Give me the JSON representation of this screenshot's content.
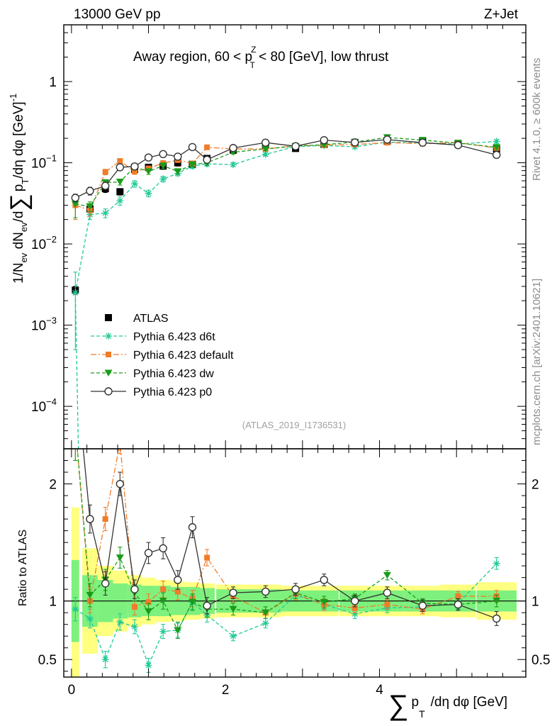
{
  "header": {
    "left": "13000 GeV pp",
    "right": "Z+Jet"
  },
  "plot_title": "Away region, 60 < p_T^Z < 80 [GeV], low thrust",
  "title_parts": {
    "pre": "Away region, 60 < p",
    "sup": "Z",
    "sub": "T",
    "post": " < 80 [GeV], low thrust"
  },
  "side_labels": {
    "rivet": "Rivet 4.1.0, ≥ 600k events",
    "mcplots": "mcplots.cern.ch [arXiv:2401.10621]"
  },
  "analysis_id": "(ATLAS_2019_I1736531)",
  "axis_labels": {
    "y_main": "1/N_ev dN_ev/d Σ p_T /dη dφ [GeV]^-1",
    "y_main_parts": {
      "a": "1/N",
      "a_sub": "ev",
      "b": " dN",
      "b_sub": "ev",
      "c": "/d",
      "sigma": "∑",
      "d": "p",
      "d_sub": "T",
      "e": "/dη dφ  [GeV]",
      "e_sup": "-1"
    },
    "y_ratio": "Ratio to ATLAS",
    "x": "Σ p_T /dη dφ [GeV]",
    "x_parts": {
      "sigma": "∑",
      "p": "p",
      "p_sub": "T",
      "rest": "/dη dφ [GeV]"
    }
  },
  "legend": [
    {
      "label": "ATLAS"
    },
    {
      "label": "Pythia 6.423 d6t"
    },
    {
      "label": "Pythia 6.423 default"
    },
    {
      "label": "Pythia 6.423 dw"
    },
    {
      "label": "Pythia 6.423 p0"
    }
  ],
  "colors": {
    "atlas": "#000000",
    "d6t": "#20c997",
    "default": "#f07c2a",
    "dw": "#1a9c1a",
    "p0": "#333333",
    "band_inner": "#7ef07e",
    "band_outer": "#ffff80"
  },
  "chart_data": {
    "type": "line",
    "x_range": [
      -0.1,
      5.9
    ],
    "main": {
      "y_scale": "log",
      "ylim": [
        3e-05,
        5
      ],
      "y_ticks": [
        {
          "value": 1,
          "label": "1"
        },
        {
          "value": 0.1,
          "label": "10",
          "sup": "−1"
        },
        {
          "value": 0.01,
          "label": "10",
          "sup": "−2"
        },
        {
          "value": 0.001,
          "label": "10",
          "sup": "−3"
        },
        {
          "value": 0.0001,
          "label": "10",
          "sup": "−4"
        }
      ]
    },
    "ratio": {
      "ylim": [
        0.35,
        2.3
      ],
      "y_ticks": [
        {
          "value": 2,
          "label": "2"
        },
        {
          "value": 1,
          "label": "1"
        },
        {
          "value": 0.5,
          "label": "0.5"
        }
      ]
    },
    "x_ticks": [
      {
        "value": 0,
        "label": "0"
      },
      {
        "value": 2,
        "label": "2"
      },
      {
        "value": 4,
        "label": "4"
      }
    ],
    "x": [
      0.05,
      0.24,
      0.44,
      0.63,
      0.82,
      1.0,
      1.19,
      1.38,
      1.57,
      1.76,
      2.1,
      2.52,
      2.91,
      3.28,
      3.68,
      4.1,
      4.56,
      5.02,
      5.52
    ],
    "bin_half_widths": [
      0.05,
      0.1,
      0.1,
      0.1,
      0.09,
      0.09,
      0.1,
      0.09,
      0.1,
      0.1,
      0.22,
      0.2,
      0.19,
      0.19,
      0.2,
      0.22,
      0.24,
      0.23,
      0.26
    ],
    "series": [
      {
        "name": "ATLAS",
        "key": "atlas",
        "marker": "square",
        "line": "none",
        "values": [
          0.0027,
          0.027,
          0.048,
          0.044,
          0.083,
          0.088,
          0.091,
          0.1,
          0.096,
          0.113,
          0.143,
          0.165,
          0.15,
          0.168,
          0.178,
          0.185,
          0.185,
          0.17,
          0.148
        ],
        "errors": [
          0.0003,
          0.004,
          0.005,
          0.004,
          0.008,
          0.008,
          0.008,
          0.009,
          0.008,
          0.009,
          0.009,
          0.01,
          0.009,
          0.01,
          0.01,
          0.011,
          0.011,
          0.01,
          0.01
        ],
        "band_inner": [
          0.35,
          0.22,
          0.18,
          0.15,
          0.14,
          0.13,
          0.13,
          0.12,
          0.12,
          0.11,
          0.1,
          0.1,
          0.09,
          0.09,
          0.09,
          0.09,
          0.09,
          0.09,
          0.09
        ],
        "band_outer": [
          0.8,
          0.45,
          0.3,
          0.26,
          0.22,
          0.2,
          0.18,
          0.17,
          0.16,
          0.15,
          0.14,
          0.14,
          0.13,
          0.13,
          0.13,
          0.13,
          0.13,
          0.14,
          0.16
        ]
      },
      {
        "name": "Pythia 6.423 d6t",
        "key": "d6t",
        "marker": "star",
        "line": "dashed",
        "values": [
          0.0025,
          0.023,
          0.024,
          0.034,
          0.055,
          0.042,
          0.063,
          0.074,
          0.091,
          0.097,
          0.095,
          0.127,
          0.158,
          0.163,
          0.157,
          0.18,
          0.175,
          0.17,
          0.183
        ],
        "errors": [
          0.002,
          0.003,
          0.003,
          0.004,
          0.005,
          0.004,
          0.005,
          0.005,
          0.006,
          0.006,
          0.005,
          0.006,
          0.007,
          0.007,
          0.007,
          0.008,
          0.008,
          0.008,
          0.009
        ],
        "ratio": [
          0.93,
          0.85,
          0.5,
          0.82,
          0.78,
          0.45,
          0.74,
          0.75,
          0.99,
          0.88,
          0.7,
          0.81,
          1.05,
          0.97,
          0.89,
          0.94,
          0.95,
          0.98,
          1.32
        ],
        "ratio_errors": [
          0.1,
          0.08,
          0.07,
          0.07,
          0.06,
          0.06,
          0.06,
          0.06,
          0.06,
          0.06,
          0.04,
          0.04,
          0.04,
          0.04,
          0.04,
          0.04,
          0.04,
          0.04,
          0.05
        ]
      },
      {
        "name": "Pythia 6.423 default",
        "key": "default",
        "marker": "square-small",
        "line": "dashdot",
        "values": [
          0.03,
          0.026,
          0.077,
          0.105,
          0.078,
          0.085,
          0.099,
          0.108,
          0.098,
          0.155,
          0.148,
          0.148,
          0.162,
          0.165,
          0.168,
          0.177,
          0.172,
          0.177,
          0.152
        ],
        "errors": [
          0.01,
          0.004,
          0.006,
          0.007,
          0.006,
          0.006,
          0.007,
          0.007,
          0.006,
          0.008,
          0.007,
          0.007,
          0.007,
          0.008,
          0.008,
          0.008,
          0.008,
          0.008,
          0.008
        ],
        "ratio": [
          2.5,
          1.0,
          1.7,
          2.35,
          0.95,
          0.99,
          1.1,
          1.08,
          1.02,
          1.37,
          1.04,
          0.9,
          1.06,
          0.97,
          0.94,
          0.97,
          0.93,
          1.04,
          1.04
        ],
        "ratio_errors": [
          0.3,
          0.1,
          0.1,
          0.09,
          0.07,
          0.07,
          0.07,
          0.07,
          0.07,
          0.07,
          0.05,
          0.05,
          0.05,
          0.05,
          0.04,
          0.04,
          0.04,
          0.04,
          0.05
        ]
      },
      {
        "name": "Pythia 6.423 dw",
        "key": "dw",
        "marker": "triangle-down",
        "line": "dashed",
        "values": [
          0.031,
          0.029,
          0.057,
          0.058,
          0.089,
          0.078,
          0.092,
          0.078,
          0.095,
          0.1,
          0.135,
          0.148,
          0.16,
          0.167,
          0.18,
          0.205,
          0.19,
          0.175,
          0.155
        ],
        "errors": [
          0.01,
          0.004,
          0.005,
          0.005,
          0.007,
          0.006,
          0.007,
          0.006,
          0.007,
          0.007,
          0.007,
          0.007,
          0.008,
          0.008,
          0.008,
          0.009,
          0.009,
          0.008,
          0.008
        ],
        "ratio": [
          2.5,
          1.05,
          1.18,
          1.37,
          1.07,
          0.91,
          1.0,
          0.75,
          0.99,
          0.93,
          0.93,
          0.9,
          1.07,
          0.99,
          1.02,
          1.22,
          0.98,
          0.97,
          1.0
        ],
        "ratio_errors": [
          0.3,
          0.1,
          0.09,
          0.09,
          0.07,
          0.07,
          0.07,
          0.07,
          0.07,
          0.07,
          0.05,
          0.05,
          0.05,
          0.05,
          0.04,
          0.04,
          0.04,
          0.04,
          0.05
        ]
      },
      {
        "name": "Pythia 6.423 p0",
        "key": "p0",
        "marker": "circle-open",
        "line": "solid",
        "values": [
          0.037,
          0.045,
          0.052,
          0.088,
          0.09,
          0.116,
          0.128,
          0.119,
          0.156,
          0.109,
          0.152,
          0.177,
          0.16,
          0.19,
          0.178,
          0.193,
          0.177,
          0.165,
          0.125
        ],
        "errors": [
          0.004,
          0.005,
          0.005,
          0.007,
          0.007,
          0.008,
          0.008,
          0.008,
          0.009,
          0.007,
          0.008,
          0.008,
          0.008,
          0.009,
          0.008,
          0.009,
          0.008,
          0.008,
          0.008
        ],
        "ratio": [
          3.0,
          1.7,
          1.15,
          2.0,
          1.1,
          1.41,
          1.45,
          1.18,
          1.63,
          0.96,
          1.07,
          1.08,
          1.1,
          1.18,
          1.0,
          1.07,
          0.96,
          0.97,
          0.85
        ],
        "ratio_errors": [
          0.3,
          0.12,
          0.1,
          0.1,
          0.08,
          0.09,
          0.09,
          0.08,
          0.09,
          0.07,
          0.05,
          0.05,
          0.05,
          0.05,
          0.05,
          0.05,
          0.05,
          0.05,
          0.06
        ]
      }
    ]
  }
}
